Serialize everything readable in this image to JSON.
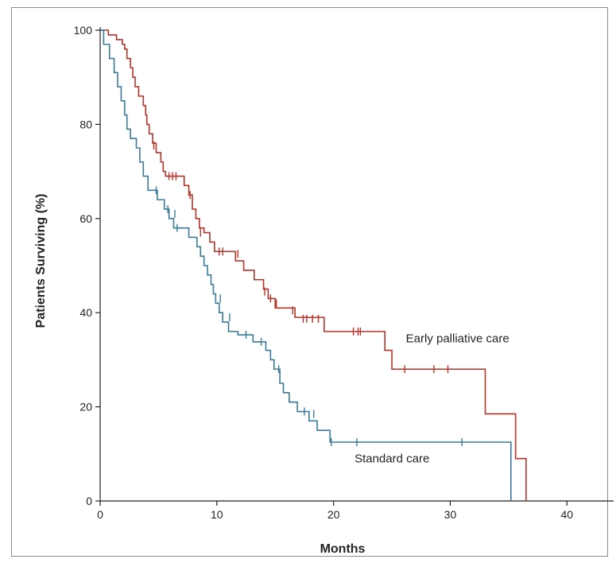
{
  "chart_data": {
    "type": "line",
    "subtype": "kaplan-meier",
    "xlabel": "Months",
    "ylabel": "Patients Surviving (%)",
    "xlim": [
      0,
      44
    ],
    "ylim": [
      0,
      100
    ],
    "x_ticks": [
      0,
      10,
      20,
      30,
      40
    ],
    "y_ticks": [
      0,
      20,
      40,
      60,
      80,
      100
    ],
    "grid": false,
    "series": [
      {
        "name": "Early palliative care",
        "color": "#b5342a",
        "steps": [
          [
            0,
            100
          ],
          [
            0.7,
            99
          ],
          [
            1.4,
            98
          ],
          [
            1.9,
            97
          ],
          [
            2.1,
            96
          ],
          [
            2.3,
            94
          ],
          [
            2.6,
            92
          ],
          [
            2.8,
            90
          ],
          [
            3.0,
            88
          ],
          [
            3.3,
            86
          ],
          [
            3.7,
            84
          ],
          [
            3.9,
            82
          ],
          [
            4.0,
            80
          ],
          [
            4.2,
            78
          ],
          [
            4.5,
            76
          ],
          [
            4.8,
            74
          ],
          [
            5.2,
            72
          ],
          [
            5.4,
            70
          ],
          [
            5.6,
            69
          ],
          [
            7.2,
            67
          ],
          [
            7.6,
            65
          ],
          [
            7.9,
            62
          ],
          [
            8.2,
            60
          ],
          [
            8.5,
            58
          ],
          [
            8.9,
            57
          ],
          [
            9.4,
            55
          ],
          [
            9.8,
            53
          ],
          [
            11.6,
            51
          ],
          [
            12.3,
            49
          ],
          [
            13.2,
            47
          ],
          [
            14.0,
            45
          ],
          [
            14.4,
            43
          ],
          [
            15.0,
            41
          ],
          [
            16.7,
            39
          ],
          [
            19.2,
            36
          ],
          [
            24.4,
            32
          ],
          [
            25.0,
            28
          ],
          [
            33.0,
            18.5
          ],
          [
            35.6,
            9
          ],
          [
            36.5,
            0
          ]
        ],
        "censored": [
          [
            4.6,
            75.5
          ],
          [
            5.9,
            69
          ],
          [
            6.2,
            69
          ],
          [
            6.5,
            69
          ],
          [
            7.7,
            65
          ],
          [
            8.6,
            57
          ],
          [
            10.2,
            53
          ],
          [
            10.5,
            53
          ],
          [
            11.8,
            52.5
          ],
          [
            14.1,
            44.5
          ],
          [
            14.6,
            43
          ],
          [
            15.1,
            42
          ],
          [
            16.5,
            40.5
          ],
          [
            17.4,
            38.7
          ],
          [
            17.7,
            38.7
          ],
          [
            18.2,
            38.7
          ],
          [
            18.7,
            38.7
          ],
          [
            21.7,
            36
          ],
          [
            22.1,
            36
          ],
          [
            22.3,
            36
          ],
          [
            26.1,
            28
          ],
          [
            28.6,
            28
          ],
          [
            29.8,
            28
          ]
        ]
      },
      {
        "name": "Standard care",
        "color": "#3b7a9a",
        "steps": [
          [
            0,
            100
          ],
          [
            0.3,
            97
          ],
          [
            0.8,
            94
          ],
          [
            1.2,
            91
          ],
          [
            1.5,
            88
          ],
          [
            1.8,
            85
          ],
          [
            2.1,
            82
          ],
          [
            2.3,
            79
          ],
          [
            2.6,
            77
          ],
          [
            3.1,
            75
          ],
          [
            3.4,
            72
          ],
          [
            3.7,
            69
          ],
          [
            4.1,
            66
          ],
          [
            4.9,
            64
          ],
          [
            5.5,
            62
          ],
          [
            5.9,
            60
          ],
          [
            6.3,
            58
          ],
          [
            7.6,
            56
          ],
          [
            8.3,
            54
          ],
          [
            8.6,
            52
          ],
          [
            8.9,
            50
          ],
          [
            9.2,
            48
          ],
          [
            9.5,
            46
          ],
          [
            9.7,
            44
          ],
          [
            9.9,
            42
          ],
          [
            10.2,
            40
          ],
          [
            10.5,
            38
          ],
          [
            11.0,
            36
          ],
          [
            11.8,
            35.3
          ],
          [
            13.1,
            33.8
          ],
          [
            14.2,
            32
          ],
          [
            14.6,
            30
          ],
          [
            14.9,
            28
          ],
          [
            15.4,
            25
          ],
          [
            15.7,
            23
          ],
          [
            16.2,
            21
          ],
          [
            16.9,
            19
          ],
          [
            17.9,
            17
          ],
          [
            18.6,
            15
          ],
          [
            19.7,
            12.5
          ],
          [
            35.2,
            0
          ]
        ],
        "censored": [
          [
            4.8,
            66
          ],
          [
            5.8,
            62
          ],
          [
            6.4,
            61
          ],
          [
            6.6,
            58
          ],
          [
            10.3,
            43
          ],
          [
            11.1,
            39
          ],
          [
            12.5,
            35.3
          ],
          [
            13.8,
            33.8
          ],
          [
            15.3,
            28
          ],
          [
            17.5,
            19
          ],
          [
            18.3,
            18.5
          ],
          [
            19.8,
            12.5
          ],
          [
            22.0,
            12.5
          ],
          [
            31.0,
            12.5
          ]
        ]
      }
    ],
    "annotations": [
      {
        "text": "Early palliative care",
        "x": 26.2,
        "y": 33.7
      },
      {
        "text": "Standard care",
        "x": 21.8,
        "y": 8.2
      }
    ]
  }
}
